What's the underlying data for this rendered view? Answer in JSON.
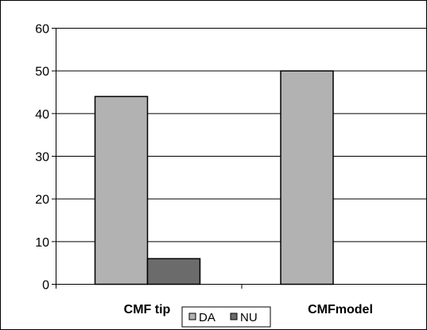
{
  "chart_data": {
    "type": "bar",
    "title": "",
    "xlabel": "",
    "ylabel": "",
    "categories": [
      "CMF tip",
      "CMFmodel"
    ],
    "series": [
      {
        "name": "DA",
        "values": [
          44,
          50
        ],
        "color": "#b2b2b2"
      },
      {
        "name": "NU",
        "values": [
          6,
          0
        ],
        "color": "#6b6b6b"
      }
    ],
    "ylim": [
      0,
      60
    ],
    "yticks": [
      0,
      10,
      20,
      30,
      40,
      50,
      60
    ],
    "grid": true,
    "legend_position": "bottom"
  }
}
